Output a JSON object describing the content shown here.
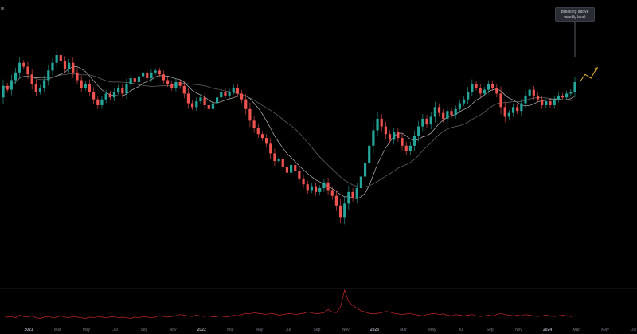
{
  "corner_mark": "re",
  "annotation": {
    "text": "Breaking above\nweekly level"
  },
  "colors": {
    "background": "#000000",
    "up": "#26a69a",
    "down": "#ef5350",
    "ma_fast": "#b8b8b8",
    "ma_slow": "#6b6b6b",
    "level_line": "#3a3a3a",
    "projection": "#f2c230",
    "indicator": "#c62828",
    "separator": "#2a2a2a"
  },
  "chart_data": {
    "type": "candlestick",
    "title": "",
    "timeframe": "weekly",
    "x_tick_labels": [
      "2021",
      "Mar",
      "May",
      "Jul",
      "Sep",
      "Nov",
      "2022",
      "Mar",
      "May",
      "Jul",
      "Sep",
      "Nov",
      "2023",
      "Mar",
      "May",
      "Jul",
      "Sep",
      "Nov",
      "2024",
      "Mar",
      "May",
      "Jul"
    ],
    "x_tick_years": [
      "2021",
      "2022",
      "2023",
      "2024"
    ],
    "price_range_relative": [
      0,
      100
    ],
    "horizontal_level": 73,
    "candles": [
      {
        "o": 66,
        "c": 72
      },
      {
        "o": 72,
        "c": 70
      },
      {
        "o": 70,
        "c": 75
      },
      {
        "o": 75,
        "c": 79
      },
      {
        "o": 79,
        "c": 84
      },
      {
        "o": 84,
        "c": 82
      },
      {
        "o": 82,
        "c": 78
      },
      {
        "o": 78,
        "c": 73
      },
      {
        "o": 73,
        "c": 69
      },
      {
        "o": 69,
        "c": 71
      },
      {
        "o": 71,
        "c": 75
      },
      {
        "o": 75,
        "c": 80
      },
      {
        "o": 80,
        "c": 84
      },
      {
        "o": 84,
        "c": 88
      },
      {
        "o": 88,
        "c": 85
      },
      {
        "o": 85,
        "c": 81
      },
      {
        "o": 81,
        "c": 84
      },
      {
        "o": 84,
        "c": 79
      },
      {
        "o": 79,
        "c": 75
      },
      {
        "o": 75,
        "c": 71
      },
      {
        "o": 71,
        "c": 73
      },
      {
        "o": 73,
        "c": 69
      },
      {
        "o": 69,
        "c": 65
      },
      {
        "o": 65,
        "c": 62
      },
      {
        "o": 62,
        "c": 65
      },
      {
        "o": 65,
        "c": 68
      },
      {
        "o": 68,
        "c": 66
      },
      {
        "o": 66,
        "c": 69
      },
      {
        "o": 69,
        "c": 71
      },
      {
        "o": 71,
        "c": 68
      },
      {
        "o": 68,
        "c": 73
      },
      {
        "o": 73,
        "c": 76
      },
      {
        "o": 76,
        "c": 74
      },
      {
        "o": 74,
        "c": 77
      },
      {
        "o": 77,
        "c": 79
      },
      {
        "o": 79,
        "c": 76
      },
      {
        "o": 76,
        "c": 79
      },
      {
        "o": 79,
        "c": 80
      },
      {
        "o": 80,
        "c": 78
      },
      {
        "o": 78,
        "c": 75
      },
      {
        "o": 75,
        "c": 73
      },
      {
        "o": 73,
        "c": 71
      },
      {
        "o": 71,
        "c": 74
      },
      {
        "o": 74,
        "c": 72
      },
      {
        "o": 72,
        "c": 68
      },
      {
        "o": 68,
        "c": 63
      },
      {
        "o": 63,
        "c": 61
      },
      {
        "o": 61,
        "c": 64
      },
      {
        "o": 64,
        "c": 66
      },
      {
        "o": 66,
        "c": 62
      },
      {
        "o": 62,
        "c": 60
      },
      {
        "o": 60,
        "c": 63
      },
      {
        "o": 63,
        "c": 66
      },
      {
        "o": 66,
        "c": 69
      },
      {
        "o": 69,
        "c": 67
      },
      {
        "o": 67,
        "c": 69
      },
      {
        "o": 69,
        "c": 71
      },
      {
        "o": 71,
        "c": 68
      },
      {
        "o": 68,
        "c": 65
      },
      {
        "o": 65,
        "c": 60
      },
      {
        "o": 60,
        "c": 54
      },
      {
        "o": 54,
        "c": 50
      },
      {
        "o": 50,
        "c": 47
      },
      {
        "o": 47,
        "c": 45
      },
      {
        "o": 45,
        "c": 42
      },
      {
        "o": 42,
        "c": 37
      },
      {
        "o": 37,
        "c": 33
      },
      {
        "o": 33,
        "c": 34
      },
      {
        "o": 34,
        "c": 30
      },
      {
        "o": 30,
        "c": 27
      },
      {
        "o": 27,
        "c": 31
      },
      {
        "o": 31,
        "c": 28
      },
      {
        "o": 28,
        "c": 24
      },
      {
        "o": 24,
        "c": 21
      },
      {
        "o": 21,
        "c": 18
      },
      {
        "o": 18,
        "c": 20
      },
      {
        "o": 20,
        "c": 17
      },
      {
        "o": 17,
        "c": 19
      },
      {
        "o": 19,
        "c": 22
      },
      {
        "o": 22,
        "c": 18
      },
      {
        "o": 18,
        "c": 15
      },
      {
        "o": 15,
        "c": 10
      },
      {
        "o": 10,
        "c": 4
      },
      {
        "o": 4,
        "c": 11
      },
      {
        "o": 11,
        "c": 17
      },
      {
        "o": 17,
        "c": 14
      },
      {
        "o": 14,
        "c": 19
      },
      {
        "o": 19,
        "c": 25
      },
      {
        "o": 25,
        "c": 32
      },
      {
        "o": 32,
        "c": 41
      },
      {
        "o": 41,
        "c": 49
      },
      {
        "o": 49,
        "c": 55
      },
      {
        "o": 55,
        "c": 51
      },
      {
        "o": 51,
        "c": 47
      },
      {
        "o": 47,
        "c": 44
      },
      {
        "o": 44,
        "c": 48
      },
      {
        "o": 48,
        "c": 45
      },
      {
        "o": 45,
        "c": 41
      },
      {
        "o": 41,
        "c": 38
      },
      {
        "o": 38,
        "c": 41
      },
      {
        "o": 41,
        "c": 46
      },
      {
        "o": 46,
        "c": 51
      },
      {
        "o": 51,
        "c": 55
      },
      {
        "o": 55,
        "c": 52
      },
      {
        "o": 52,
        "c": 56
      },
      {
        "o": 56,
        "c": 61
      },
      {
        "o": 61,
        "c": 58
      },
      {
        "o": 58,
        "c": 55
      },
      {
        "o": 55,
        "c": 59
      },
      {
        "o": 59,
        "c": 57
      },
      {
        "o": 57,
        "c": 60
      },
      {
        "o": 60,
        "c": 63
      },
      {
        "o": 63,
        "c": 65
      },
      {
        "o": 65,
        "c": 69
      },
      {
        "o": 69,
        "c": 73
      },
      {
        "o": 73,
        "c": 71
      },
      {
        "o": 71,
        "c": 68
      },
      {
        "o": 68,
        "c": 70
      },
      {
        "o": 70,
        "c": 73
      },
      {
        "o": 73,
        "c": 71
      },
      {
        "o": 71,
        "c": 68
      },
      {
        "o": 68,
        "c": 61
      },
      {
        "o": 61,
        "c": 56
      },
      {
        "o": 56,
        "c": 58
      },
      {
        "o": 58,
        "c": 61
      },
      {
        "o": 61,
        "c": 59
      },
      {
        "o": 59,
        "c": 63
      },
      {
        "o": 63,
        "c": 67
      },
      {
        "o": 67,
        "c": 70
      },
      {
        "o": 70,
        "c": 67
      },
      {
        "o": 67,
        "c": 65
      },
      {
        "o": 65,
        "c": 62
      },
      {
        "o": 62,
        "c": 64
      },
      {
        "o": 64,
        "c": 62
      },
      {
        "o": 62,
        "c": 65
      },
      {
        "o": 65,
        "c": 67
      },
      {
        "o": 67,
        "c": 66
      },
      {
        "o": 66,
        "c": 68
      },
      {
        "o": 68,
        "c": 69
      },
      {
        "o": 69,
        "c": 74
      }
    ],
    "projection_path": [
      [
        74
      ],
      [
        78
      ],
      [
        76
      ],
      [
        81
      ]
    ],
    "indicator_series": [
      12,
      10,
      11,
      9,
      13,
      11,
      10,
      12,
      9,
      8,
      10,
      11,
      9,
      10,
      12,
      10,
      9,
      11,
      10,
      9,
      8,
      10,
      9,
      11,
      10,
      9,
      10,
      11,
      9,
      10,
      9,
      8,
      10,
      9,
      11,
      10,
      9,
      10,
      12,
      11,
      10,
      11,
      12,
      14,
      13,
      12,
      11,
      13,
      12,
      11,
      12,
      10,
      11,
      12,
      10,
      11,
      13,
      12,
      14,
      16,
      15,
      17,
      16,
      15,
      14,
      16,
      15,
      13,
      14,
      15,
      16,
      14,
      15,
      16,
      18,
      17,
      15,
      16,
      17,
      22,
      18,
      17,
      26,
      52,
      34,
      28,
      24,
      20,
      18,
      16,
      15,
      16,
      17,
      19,
      18,
      16,
      15,
      14,
      15,
      16,
      14,
      13,
      12,
      14,
      15,
      16,
      14,
      15,
      13,
      12,
      14,
      13,
      12,
      13,
      14,
      12,
      11,
      12,
      13,
      12,
      14,
      16,
      14,
      13,
      12,
      13,
      12,
      14,
      13,
      12,
      11,
      12,
      13,
      12,
      11,
      12,
      13,
      12,
      11,
      12
    ]
  }
}
